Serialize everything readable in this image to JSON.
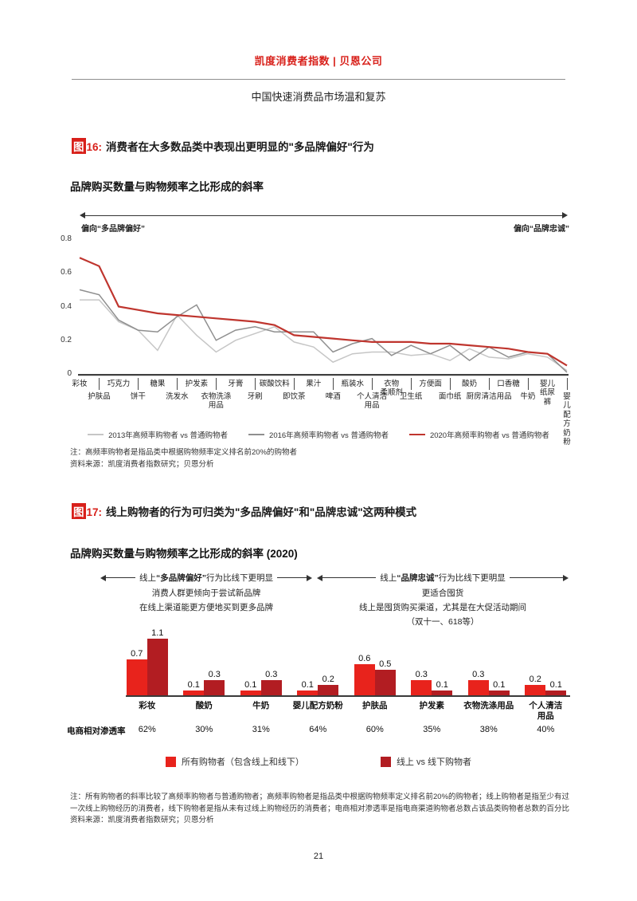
{
  "page": {
    "brand": "凯度消费者指数 | 贝恩公司",
    "subtitle": "中国快速消费品市场温和复苏",
    "page_number": "21"
  },
  "figure16": {
    "badge": "图",
    "number": "16:",
    "title": "消费者在大多数品类中表现出更明显的\"多品牌偏好\"行为",
    "chart_title": "品牌购买数量与购物频率之比形成的斜率",
    "arrow_left_label": "偏向“多品牌偏好”",
    "arrow_right_label": "偏向“品牌忠诚”",
    "note": "注：高频率购物者是指品类中根据购物频率定义排名前20%的购物者",
    "source": "资料来源：凯度消费者指数研究；贝恩分析"
  },
  "figure17": {
    "badge": "图",
    "number": "17:",
    "title": "线上购物者的行为可归类为\"多品牌偏好\"和\"品牌忠诚\"这两种模式",
    "chart_title": "品牌购买数量与购物频率之比形成的斜率 (2020)",
    "anno_left": {
      "pre": "线上",
      "bold": "“多品牌偏好”",
      "post": "行为比线下更明显",
      "lines": [
        "消费人群更倾向于尝试新品牌",
        "在线上渠道能更方便地买到更多品牌"
      ]
    },
    "anno_right": {
      "pre": "线上",
      "bold": "“品牌忠诚”",
      "post": "行为比线下更明显",
      "lines": [
        "更适合囤货",
        "线上是囤货购买渠道，尤其是在大促活动期间",
        "（双十一、618等）"
      ]
    },
    "note": "注：所有购物者的斜率比较了高频率购物者与普通购物者；高频率购物者是指品类中根据购物频率定义排名前20%的购物者；线上购物者是指至少有过一次线上购物经历的消费者，线下购物者是指从未有过线上购物经历的消费者；电商相对渗透率是指电商渠道购物者总数占该品类购物者总数的百分比",
    "source": "资料来源：凯度消费者指数研究；贝恩分析"
  },
  "chart_data": [
    {
      "type": "line",
      "title": "品牌购买数量与购物频率之比形成的斜率",
      "ylim": [
        0,
        0.8
      ],
      "yticks": [
        0.8,
        0.6,
        0.4,
        0.2,
        0
      ],
      "grid": false,
      "legend_position": "bottom",
      "categories": [
        "彩妆",
        "护肤品",
        "巧克力",
        "饼干",
        "糖果",
        "洗发水",
        "护发素",
        "衣物洗涤\n用品",
        "牙膏",
        "牙刷",
        "碳酸饮料",
        "即饮茶",
        "果汁",
        "啤酒",
        "瓶装水",
        "个人清洁\n用品",
        "衣物\n柔顺剂",
        "卫生纸",
        "方便面",
        "面巾纸",
        "酸奶",
        "厨房清洁用品",
        "口香糖",
        "牛奶",
        "婴儿\n纸尿裤",
        "婴儿配方\n奶粉"
      ],
      "series": [
        {
          "name": "2013年高频率购物者 vs 普通购物者",
          "color": "#c6c6c6",
          "values": [
            0.44,
            0.44,
            0.31,
            0.26,
            0.14,
            0.35,
            0.23,
            0.13,
            0.2,
            0.24,
            0.28,
            0.19,
            0.16,
            0.07,
            0.12,
            0.13,
            0.13,
            0.11,
            0.12,
            0.08,
            0.15,
            0.1,
            0.09,
            0.12,
            0.1,
            0.02
          ]
        },
        {
          "name": "2016年高频率购物者 vs 普通购物者",
          "color": "#8f8f8f",
          "values": [
            0.5,
            0.47,
            0.32,
            0.26,
            0.25,
            0.34,
            0.41,
            0.2,
            0.26,
            0.28,
            0.25,
            0.25,
            0.25,
            0.13,
            0.18,
            0.21,
            0.11,
            0.17,
            0.12,
            0.17,
            0.08,
            0.16,
            0.1,
            0.13,
            0.12,
            0.01
          ]
        },
        {
          "name": "2020年高频率购物者 vs 普通购物者",
          "color": "#bf352e",
          "emphasis": true,
          "values": [
            0.69,
            0.64,
            0.4,
            0.38,
            0.36,
            0.35,
            0.34,
            0.33,
            0.32,
            0.31,
            0.29,
            0.23,
            0.22,
            0.21,
            0.2,
            0.19,
            0.19,
            0.19,
            0.18,
            0.18,
            0.17,
            0.16,
            0.15,
            0.13,
            0.12,
            0.05
          ]
        }
      ]
    },
    {
      "type": "bar",
      "title": "品牌购买数量与购物频率之比形成的斜率 (2020)",
      "ylim": [
        0,
        1.2
      ],
      "categories": [
        "彩妆",
        "酸奶",
        "牛奶",
        "婴儿配方奶粉",
        "护肤品",
        "护发素",
        "衣物洗涤用品",
        "个人清洁\n用品"
      ],
      "series": [
        {
          "name": "所有购物者（包含线上和线下）",
          "color": "#e8231c",
          "values": [
            0.7,
            0.1,
            0.1,
            0.1,
            0.6,
            0.3,
            0.3,
            0.2
          ]
        },
        {
          "name": "线上 vs 线下购物者",
          "color": "#b21d22",
          "values": [
            1.1,
            0.3,
            0.3,
            0.2,
            0.5,
            0.1,
            0.1,
            0.1
          ]
        }
      ],
      "penetration_label": "电商相对渗透率",
      "penetration": [
        "62%",
        "30%",
        "31%",
        "64%",
        "60%",
        "35%",
        "38%",
        "40%"
      ]
    }
  ]
}
